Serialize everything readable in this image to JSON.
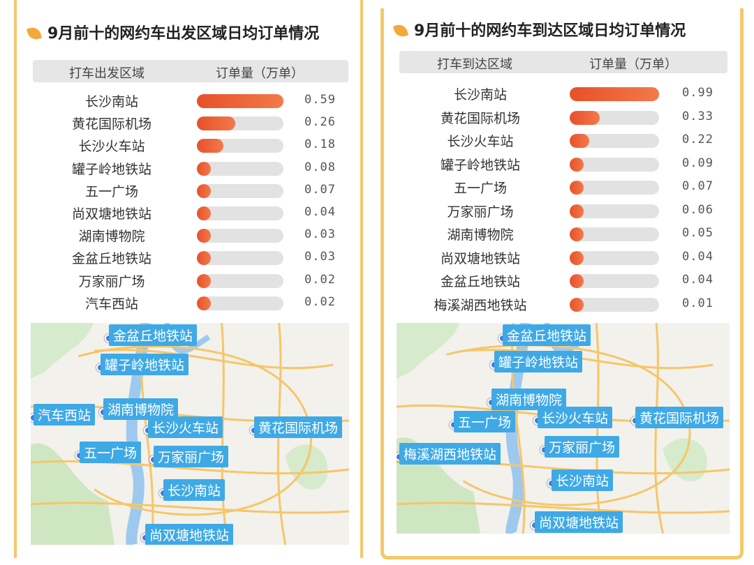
{
  "chart_data": [
    {
      "type": "bar",
      "title": "9月前十的网约车出发区域日均订单情况",
      "col_category": "打车出发区域",
      "col_value": "订单量（万单）",
      "categories": [
        "长沙南站",
        "黄花国际机场",
        "长沙火车站",
        "罐子岭地铁站",
        "五一广场",
        "尚双塘地铁站",
        "湖南博物院",
        "金盆丘地铁站",
        "万家丽广场",
        "汽车西站"
      ],
      "values": [
        0.59,
        0.26,
        0.18,
        0.08,
        0.07,
        0.04,
        0.03,
        0.03,
        0.02,
        0.02
      ],
      "value_labels": [
        "0.59",
        "0.26",
        "0.18",
        "0.08",
        "0.07",
        "0.04",
        "0.03",
        "0.03",
        "0.02",
        "0.02"
      ],
      "map_labels": [
        "金盆丘地铁站",
        "罐子岭地铁站",
        "汽车西站",
        "湖南博物院",
        "长沙火车站",
        "黄花国际机场",
        "五一广场",
        "万家丽广场",
        "长沙南站",
        "尚双塘地铁站"
      ]
    },
    {
      "type": "bar",
      "title": "9月前十的网约车到达区域日均订单情况",
      "col_category": "打车到达区域",
      "col_value": "订单量（万单）",
      "categories": [
        "长沙南站",
        "黄花国际机场",
        "长沙火车站",
        "罐子岭地铁站",
        "五一广场",
        "万家丽广场",
        "湖南博物院",
        "尚双塘地铁站",
        "金盆丘地铁站",
        "梅溪湖西地铁站"
      ],
      "values": [
        0.99,
        0.33,
        0.22,
        0.09,
        0.07,
        0.06,
        0.05,
        0.04,
        0.04,
        0.01
      ],
      "value_labels": [
        "0.99",
        "0.33",
        "0.22",
        "0.09",
        "0.07",
        "0.06",
        "0.05",
        "0.04",
        "0.04",
        "0.01"
      ],
      "map_labels": [
        "金盆丘地铁站",
        "罐子岭地铁站",
        "湖南博物院",
        "五一广场",
        "长沙火车站",
        "黄花国际机场",
        "万家丽广场",
        "梅溪湖西地铁站",
        "长沙南站",
        "尚双塘地铁站"
      ]
    }
  ],
  "colors": {
    "bar": "#e8502a",
    "track": "#e2e2e2",
    "accent": "#f5c86a",
    "map_label": "#3fa9e6"
  }
}
